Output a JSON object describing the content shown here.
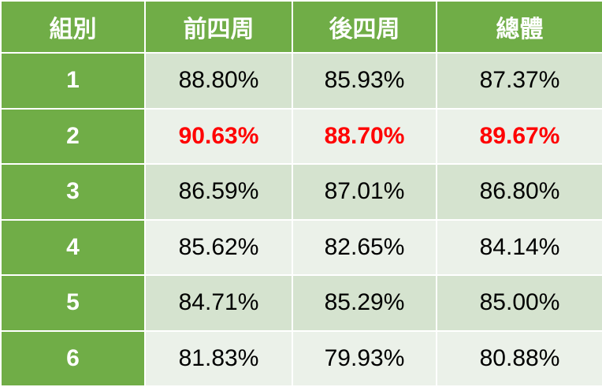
{
  "table": {
    "headers": [
      "組別",
      "前四周",
      "後四周",
      "總體"
    ],
    "highlight_color": "#ff0000",
    "header_color": "#70ad47",
    "rows": [
      {
        "group": "1",
        "values": [
          "88.80%",
          "85.93%",
          "87.37%"
        ],
        "highlight": false
      },
      {
        "group": "2",
        "values": [
          "90.63%",
          "88.70%",
          "89.67%"
        ],
        "highlight": true
      },
      {
        "group": "3",
        "values": [
          "86.59%",
          "87.01%",
          "86.80%"
        ],
        "highlight": false
      },
      {
        "group": "4",
        "values": [
          "85.62%",
          "82.65%",
          "84.14%"
        ],
        "highlight": false
      },
      {
        "group": "5",
        "values": [
          "84.71%",
          "85.29%",
          "85.00%"
        ],
        "highlight": false
      },
      {
        "group": "6",
        "values": [
          "81.83%",
          "79.93%",
          "80.88%"
        ],
        "highlight": false
      }
    ]
  }
}
